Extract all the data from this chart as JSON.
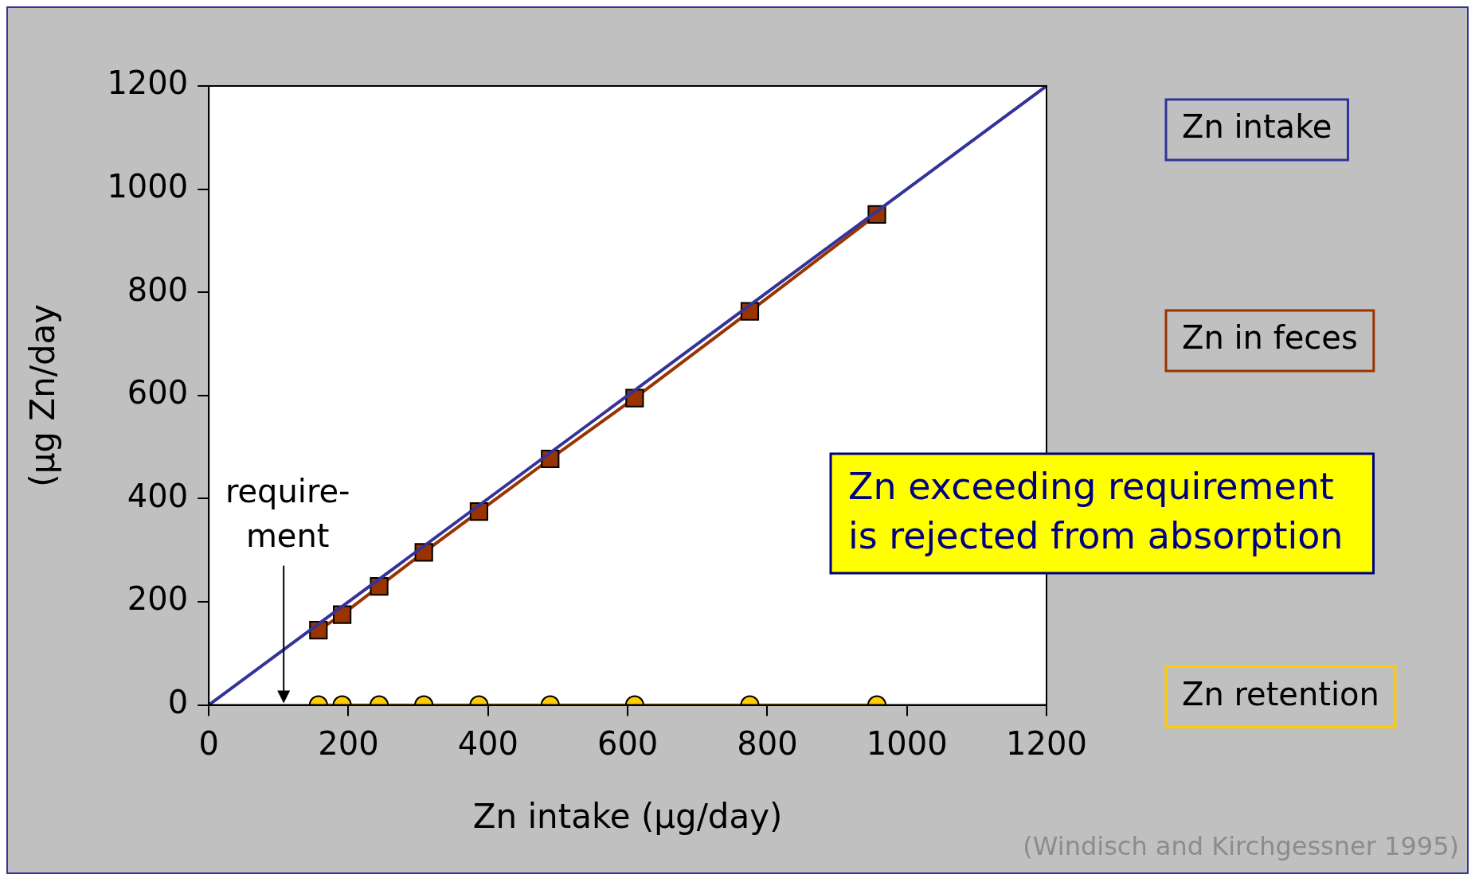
{
  "chart_data": {
    "type": "line",
    "xlabel": "Zn intake (µg/day)",
    "ylabel": "(µg Zn/day",
    "xlim": [
      0,
      1200
    ],
    "xticks": [
      0,
      200,
      400,
      600,
      800,
      1000,
      1200
    ],
    "ylim": [
      0,
      1200
    ],
    "yticks": [
      0,
      200,
      400,
      600,
      800,
      1000,
      1200
    ],
    "grid": false,
    "legend": "right",
    "series": [
      {
        "name": "Zn intake",
        "color": "#333399",
        "x": [
          0,
          1200
        ],
        "values": [
          0,
          1200
        ],
        "marker": "none"
      },
      {
        "name": "Zn in feces",
        "color": "#993300",
        "x": [
          157,
          191,
          244,
          308,
          387,
          489,
          610,
          775,
          957
        ],
        "values": [
          145,
          175,
          230,
          296,
          375,
          477,
          595,
          763,
          951
        ],
        "marker": "square"
      },
      {
        "name": "Zn retention",
        "color": "#ffcc00",
        "x": [
          157,
          191,
          244,
          308,
          387,
          489,
          610,
          775,
          957
        ],
        "values": [
          0,
          0,
          0,
          0,
          0,
          0,
          0,
          0,
          0
        ],
        "marker": "circle"
      }
    ],
    "annotations": [
      "require-\nment",
      "Zn exceeding requirement\nis rejected from absorption",
      "(Windisch and Kirchgessner 1995)"
    ]
  }
}
